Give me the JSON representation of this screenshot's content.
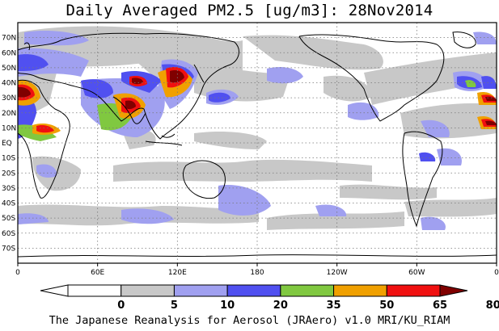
{
  "header": {
    "title": "Daily Averaged PM2.5 [ug/m3]: 28Nov2014"
  },
  "map": {
    "lat_labels": [
      "70N",
      "60N",
      "50N",
      "40N",
      "30N",
      "20N",
      "10N",
      "EQ",
      "10S",
      "20S",
      "30S",
      "40S",
      "50S",
      "60S",
      "70S"
    ],
    "lon_labels": [
      "0",
      "60E",
      "120E",
      "180",
      "120W",
      "60W",
      "0"
    ]
  },
  "colorbar": {
    "ticks": [
      "0",
      "5",
      "10",
      "20",
      "35",
      "50",
      "65",
      "80"
    ],
    "colors": [
      "#ffffff",
      "#c8c8c8",
      "#a0a0f0",
      "#5050f0",
      "#80c840",
      "#f0a000",
      "#f01010",
      "#800000"
    ]
  },
  "footer": {
    "credit": "The Japanese Reanalysis for Aerosol (JRAero) v1.0 MRI/KU_RIAM"
  }
}
